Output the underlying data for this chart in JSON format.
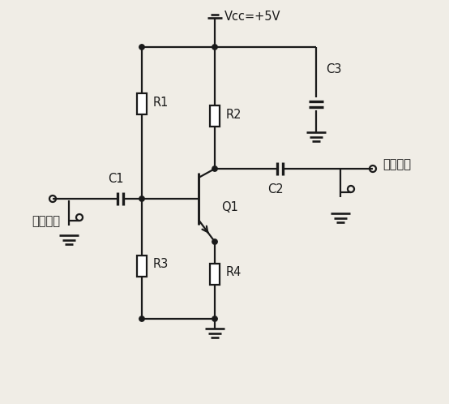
{
  "bg_color": "#f0ede6",
  "line_color": "#1a1a1a",
  "vcc_label": "Vcc=+5V",
  "components": {
    "R1": "R1",
    "R2": "R2",
    "R3": "R3",
    "R4": "R4",
    "C1": "C1",
    "C2": "C2",
    "C3": "C3",
    "Q1": "Q1"
  },
  "input_label": "输入信号",
  "output_label": "输出信号",
  "figsize": [
    5.54,
    4.98
  ],
  "dpi": 100
}
